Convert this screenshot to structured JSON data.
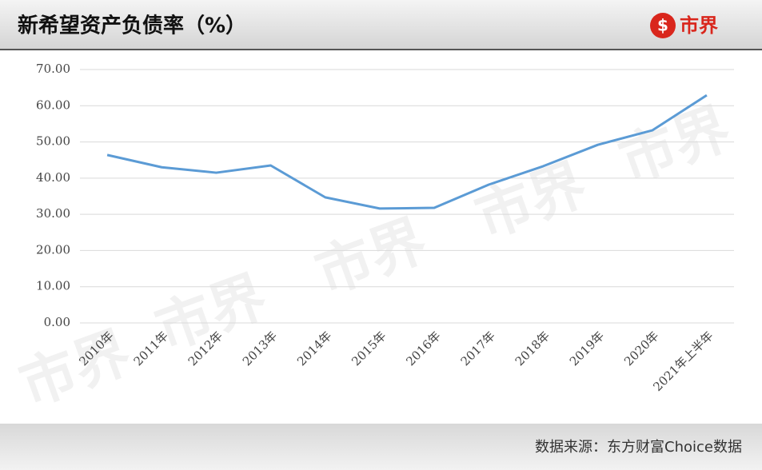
{
  "logo": "市界",
  "source": "数据来源：东方财富Choice数据",
  "chart_data": {
    "type": "line",
    "title": "新希望资产负债率（%）",
    "categories": [
      "2010年",
      "2011年",
      "2012年",
      "2013年",
      "2014年",
      "2015年",
      "2016年",
      "2017年",
      "2018年",
      "2019年",
      "2020年",
      "2021年上半年"
    ],
    "values": [
      46.4,
      43.0,
      41.5,
      43.5,
      34.7,
      31.6,
      31.8,
      38.2,
      43.3,
      49.2,
      53.2,
      62.9
    ],
    "color": "#5b9bd5",
    "ylim": [
      0,
      70
    ],
    "yticks": [
      {
        "value": 0,
        "label": "0.00"
      },
      {
        "value": 10,
        "label": "10.00"
      },
      {
        "value": 20,
        "label": "20.00"
      },
      {
        "value": 30,
        "label": "30.00"
      },
      {
        "value": 40,
        "label": "40.00"
      },
      {
        "value": 50,
        "label": "50.00"
      },
      {
        "value": 60,
        "label": "60.00"
      },
      {
        "value": 70,
        "label": "70.00"
      }
    ],
    "grid": true
  }
}
